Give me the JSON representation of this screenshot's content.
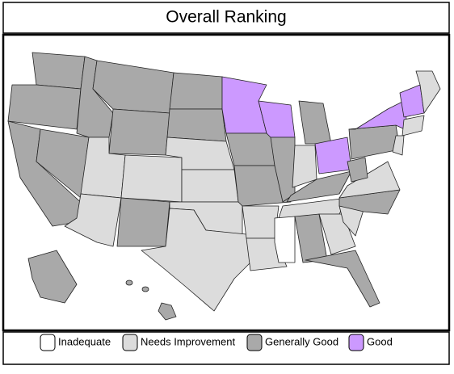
{
  "title": "Overall Ranking",
  "legend": [
    {
      "label": "Inadequate",
      "color": "#ffffff"
    },
    {
      "label": "Needs Improvement",
      "color": "#dcdcdc"
    },
    {
      "label": "Generally Good",
      "color": "#a9a9a9"
    },
    {
      "label": "Good",
      "color": "#cc99ff"
    }
  ]
}
